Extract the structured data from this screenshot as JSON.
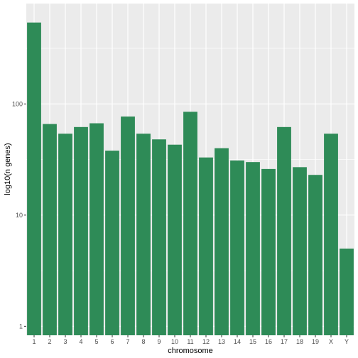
{
  "chart_data": {
    "type": "bar",
    "title": "",
    "xlabel": "chromosome",
    "ylabel": "log10(n genes)",
    "y_scale": "log10",
    "ylim": [
      0.83,
      800
    ],
    "y_ticks": [
      1,
      10,
      100
    ],
    "y_tick_labels": [
      "1",
      "10",
      "100"
    ],
    "categories": [
      "1",
      "2",
      "3",
      "4",
      "5",
      "6",
      "7",
      "8",
      "9",
      "10",
      "11",
      "12",
      "13",
      "14",
      "15",
      "16",
      "17",
      "18",
      "19",
      "X",
      "Y"
    ],
    "values": [
      540,
      66,
      54,
      62,
      67,
      38,
      77,
      54,
      48,
      43,
      85,
      33,
      40,
      31,
      30,
      26,
      62,
      27,
      23,
      54,
      5
    ],
    "grid": true,
    "colors": {
      "bar": "#2e8b57",
      "panel": "#ebebeb",
      "grid": "#ffffff"
    }
  }
}
